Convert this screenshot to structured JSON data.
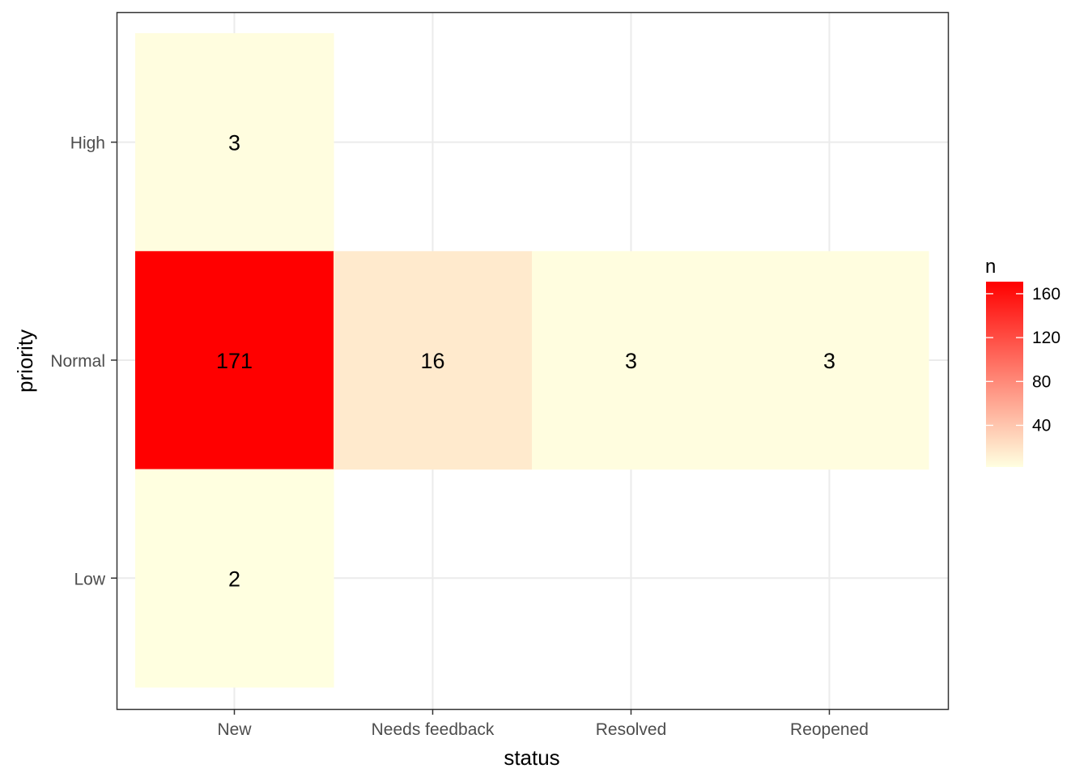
{
  "chart_data": {
    "type": "heatmap",
    "xlabel": "status",
    "ylabel": "priority",
    "x_categories": [
      "New",
      "Needs feedback",
      "Resolved",
      "Reopened"
    ],
    "y_categories": [
      "High",
      "Normal",
      "Low"
    ],
    "cells": [
      {
        "x": "New",
        "y": "High",
        "value": 3
      },
      {
        "x": "New",
        "y": "Normal",
        "value": 171
      },
      {
        "x": "New",
        "y": "Low",
        "value": 2
      },
      {
        "x": "Needs feedback",
        "y": "Normal",
        "value": 16
      },
      {
        "x": "Resolved",
        "y": "Normal",
        "value": 3
      },
      {
        "x": "Reopened",
        "y": "Normal",
        "value": 3
      }
    ],
    "legend": {
      "title": "n",
      "ticks": [
        40,
        80,
        120,
        160
      ],
      "range": [
        2,
        171
      ],
      "colors": {
        "low": "#ffffe0",
        "high": "#ff0000"
      },
      "placement": "right"
    },
    "grid": true,
    "panel_border": true
  }
}
